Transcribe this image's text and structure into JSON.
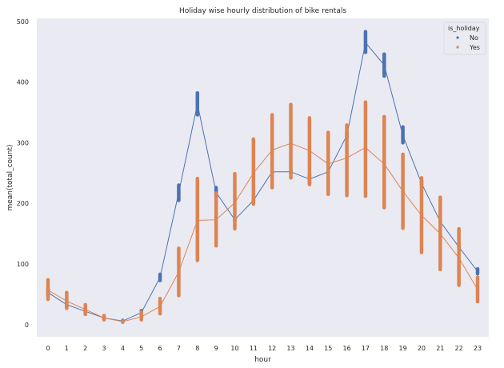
{
  "chart_data": {
    "type": "line",
    "title": "Holiday wise hourly distribution of bike rentals",
    "xlabel": "hour",
    "ylabel": "mean(total_count)",
    "x": [
      0,
      1,
      2,
      3,
      4,
      5,
      6,
      7,
      8,
      9,
      10,
      11,
      12,
      13,
      14,
      15,
      16,
      17,
      18,
      19,
      20,
      21,
      22,
      23
    ],
    "x_tick_labels": [
      "0",
      "1",
      "2",
      "3",
      "4",
      "5",
      "6",
      "7",
      "8",
      "9",
      "10",
      "11",
      "12",
      "13",
      "14",
      "15",
      "16",
      "17",
      "18",
      "19",
      "20",
      "21",
      "22",
      "23"
    ],
    "ylim": [
      -20,
      505
    ],
    "yticks": [
      0,
      100,
      200,
      300,
      400,
      500
    ],
    "ytick_labels": [
      "0",
      "100",
      "200",
      "300",
      "400",
      "500"
    ],
    "grid": false,
    "legend": {
      "title": "is_holiday",
      "placement": "top-right"
    },
    "series": [
      {
        "name": "No",
        "color": "#4c72b0",
        "values": [
          53,
          33,
          22,
          11,
          6,
          20,
          78,
          218,
          364,
          218,
          173,
          205,
          252,
          252,
          240,
          252,
          312,
          465,
          428,
          312,
          233,
          170,
          128,
          88
        ],
        "ci_low": [
          48,
          30,
          20,
          9,
          5,
          17,
          73,
          205,
          346,
          212,
          172,
          200,
          250,
          250,
          232,
          250,
          308,
          449,
          410,
          300,
          230,
          168,
          126,
          84
        ],
        "ci_high": [
          59,
          37,
          24,
          13,
          7,
          23,
          83,
          230,
          382,
          226,
          175,
          208,
          255,
          255,
          247,
          255,
          317,
          483,
          446,
          326,
          237,
          173,
          131,
          92
        ]
      },
      {
        "name": "Yes",
        "color": "#dd8452",
        "values": [
          57,
          39,
          25,
          11,
          5,
          13,
          30,
          87,
          172,
          173,
          201,
          250,
          288,
          299,
          287,
          265,
          275,
          292,
          265,
          220,
          180,
          150,
          110,
          58
        ],
        "ci_low": [
          42,
          27,
          17,
          8,
          4,
          8,
          18,
          48,
          106,
          130,
          158,
          199,
          226,
          242,
          231,
          215,
          213,
          212,
          193,
          159,
          119,
          91,
          65,
          38
        ],
        "ci_high": [
          74,
          53,
          33,
          15,
          6,
          21,
          43,
          126,
          241,
          217,
          249,
          306,
          346,
          363,
          341,
          317,
          329,
          367,
          343,
          281,
          242,
          210,
          158,
          78
        ]
      }
    ]
  }
}
